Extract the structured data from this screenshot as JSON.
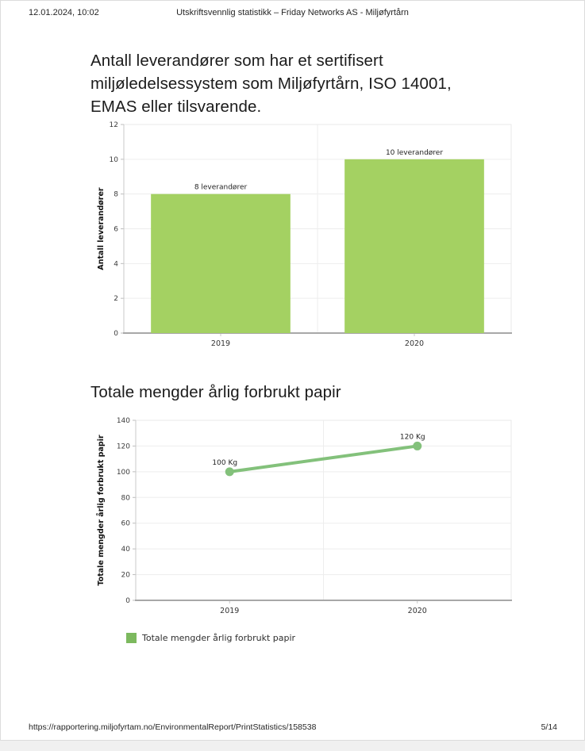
{
  "header": {
    "datetime": "12.01.2024, 10:02",
    "title": "Utskriftsvennlig statistikk – Friday Networks AS - Miljøfyrtårn"
  },
  "footer": {
    "url": "https://rapportering.miljofyrtam.no/EnvironmentalReport/PrintStatistics/158538",
    "page_number": "5/14"
  },
  "chart_data": [
    {
      "type": "bar",
      "heading": "Antall leverandører som har et sertifisert miljøledelsessystem som Miljøfyrtårn, ISO 14001, EMAS eller tilsvarende.",
      "categories": [
        "2019",
        "2020"
      ],
      "values": [
        8,
        10
      ],
      "value_labels": [
        "8 leverandører",
        "10 leverandører"
      ],
      "ylabel": "Antall leverandører",
      "xlabel": "",
      "ylim": [
        0,
        12
      ],
      "ytick_step": 2,
      "grid": "on",
      "color": "#a4d162"
    },
    {
      "type": "line",
      "heading": "Totale mengder årlig forbrukt papir",
      "categories": [
        "2019",
        "2020"
      ],
      "values": [
        100,
        120
      ],
      "value_labels": [
        "100 Kg",
        "120 Kg"
      ],
      "ylabel": "Totale mengder årlig forbrukt papir",
      "xlabel": "",
      "ylim": [
        0,
        140
      ],
      "ytick_step": 20,
      "grid": "on",
      "color": "#83c17b",
      "legend": "Totale mengder årlig forbrukt papir",
      "legend_color": "#7cb95e",
      "legend_position": "bottom-left"
    }
  ]
}
